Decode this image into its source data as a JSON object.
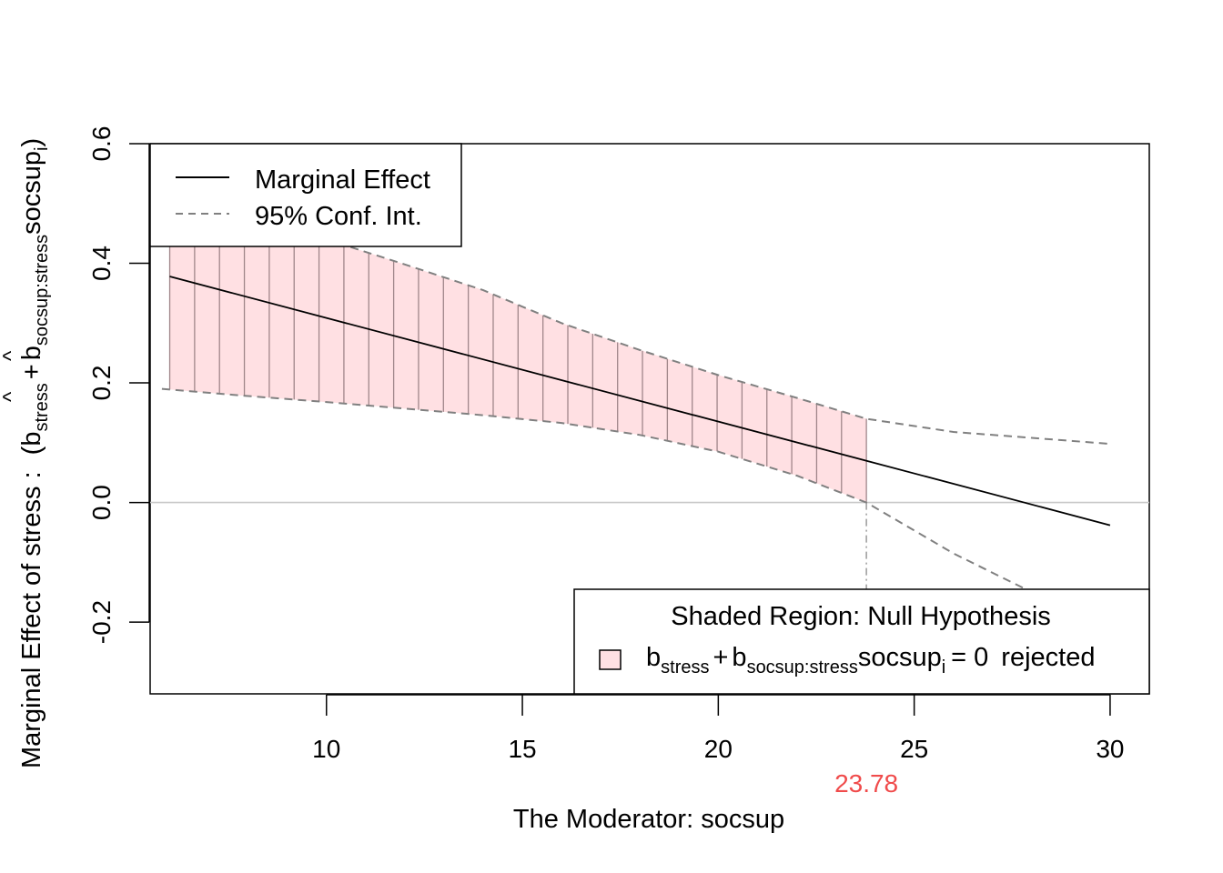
{
  "chart_data": {
    "type": "line",
    "xlabel": "The Moderator:  socsup",
    "ylabel_main": "Marginal Effect of  stress :",
    "ylabel_formula": {
      "open": "(",
      "b1": "b",
      "sub1": "stress",
      "plus": "+",
      "b2": "b",
      "sub2": "socsup:stress",
      "var": "socsup",
      "sub3": "i",
      "close": ")",
      "hat": "^"
    },
    "xlim": [
      5.5,
      31.0
    ],
    "ylim": [
      -0.32,
      0.6
    ],
    "xticks": [
      10,
      15,
      20,
      25,
      30
    ],
    "xtick_labels": [
      "10",
      "15",
      "20",
      "25",
      "30"
    ],
    "yticks": [
      -0.2,
      0.0,
      0.2,
      0.4,
      0.6
    ],
    "ytick_labels": [
      "-0.2",
      "0.0",
      "0.2",
      "0.4",
      "0.6"
    ],
    "reference_line_y": 0,
    "critical_value": 23.78,
    "critical_value_label": "23.78",
    "series": [
      {
        "name": "Marginal Effect",
        "style": "solid",
        "color": "#000000",
        "x": [
          6.0,
          30.0
        ],
        "y": [
          0.378,
          -0.038
        ]
      },
      {
        "name": "95% Conf. Int. (upper)",
        "style": "dashed",
        "color": "#808080",
        "x": [
          6.0,
          8.0,
          10.0,
          12.0,
          14.0,
          16.0,
          18.0,
          20.0,
          22.0,
          23.78,
          26.0,
          28.0,
          30.0
        ],
        "y": [
          0.53,
          0.485,
          0.44,
          0.398,
          0.355,
          0.3,
          0.255,
          0.213,
          0.175,
          0.14,
          0.118,
          0.108,
          0.098
        ]
      },
      {
        "name": "95% Conf. Int. (lower)",
        "style": "dashed",
        "color": "#808080",
        "x": [
          5.8,
          8.0,
          10.0,
          12.0,
          14.0,
          16.0,
          18.0,
          20.0,
          22.0,
          23.78,
          26.0,
          28.0,
          30.0
        ],
        "y": [
          0.19,
          0.178,
          0.168,
          0.157,
          0.146,
          0.133,
          0.113,
          0.085,
          0.045,
          0.0,
          -0.085,
          -0.15,
          -0.215
        ]
      }
    ],
    "shaded_region": {
      "x_from": 6.0,
      "x_to": 23.78,
      "fill": "#ffe0e3",
      "hatch_color": "#a0868a",
      "hatch_count": 28
    },
    "legend_top": {
      "position": "top-left",
      "entries": [
        {
          "label": "Marginal Effect",
          "style": "solid",
          "color": "#000000"
        },
        {
          "label": "95% Conf. Int.",
          "style": "dashed",
          "color": "#808080"
        }
      ]
    },
    "legend_bottom": {
      "position": "bottom-right",
      "title": "Shaded Region: Null Hypothesis",
      "formula": {
        "b1": "b",
        "sub1": "stress",
        "plus": "+",
        "b2": "b",
        "sub2": "socsup:stress",
        "var": "socsup",
        "sub3": "i",
        "eq": "= 0",
        "rest": "rejected"
      }
    }
  }
}
